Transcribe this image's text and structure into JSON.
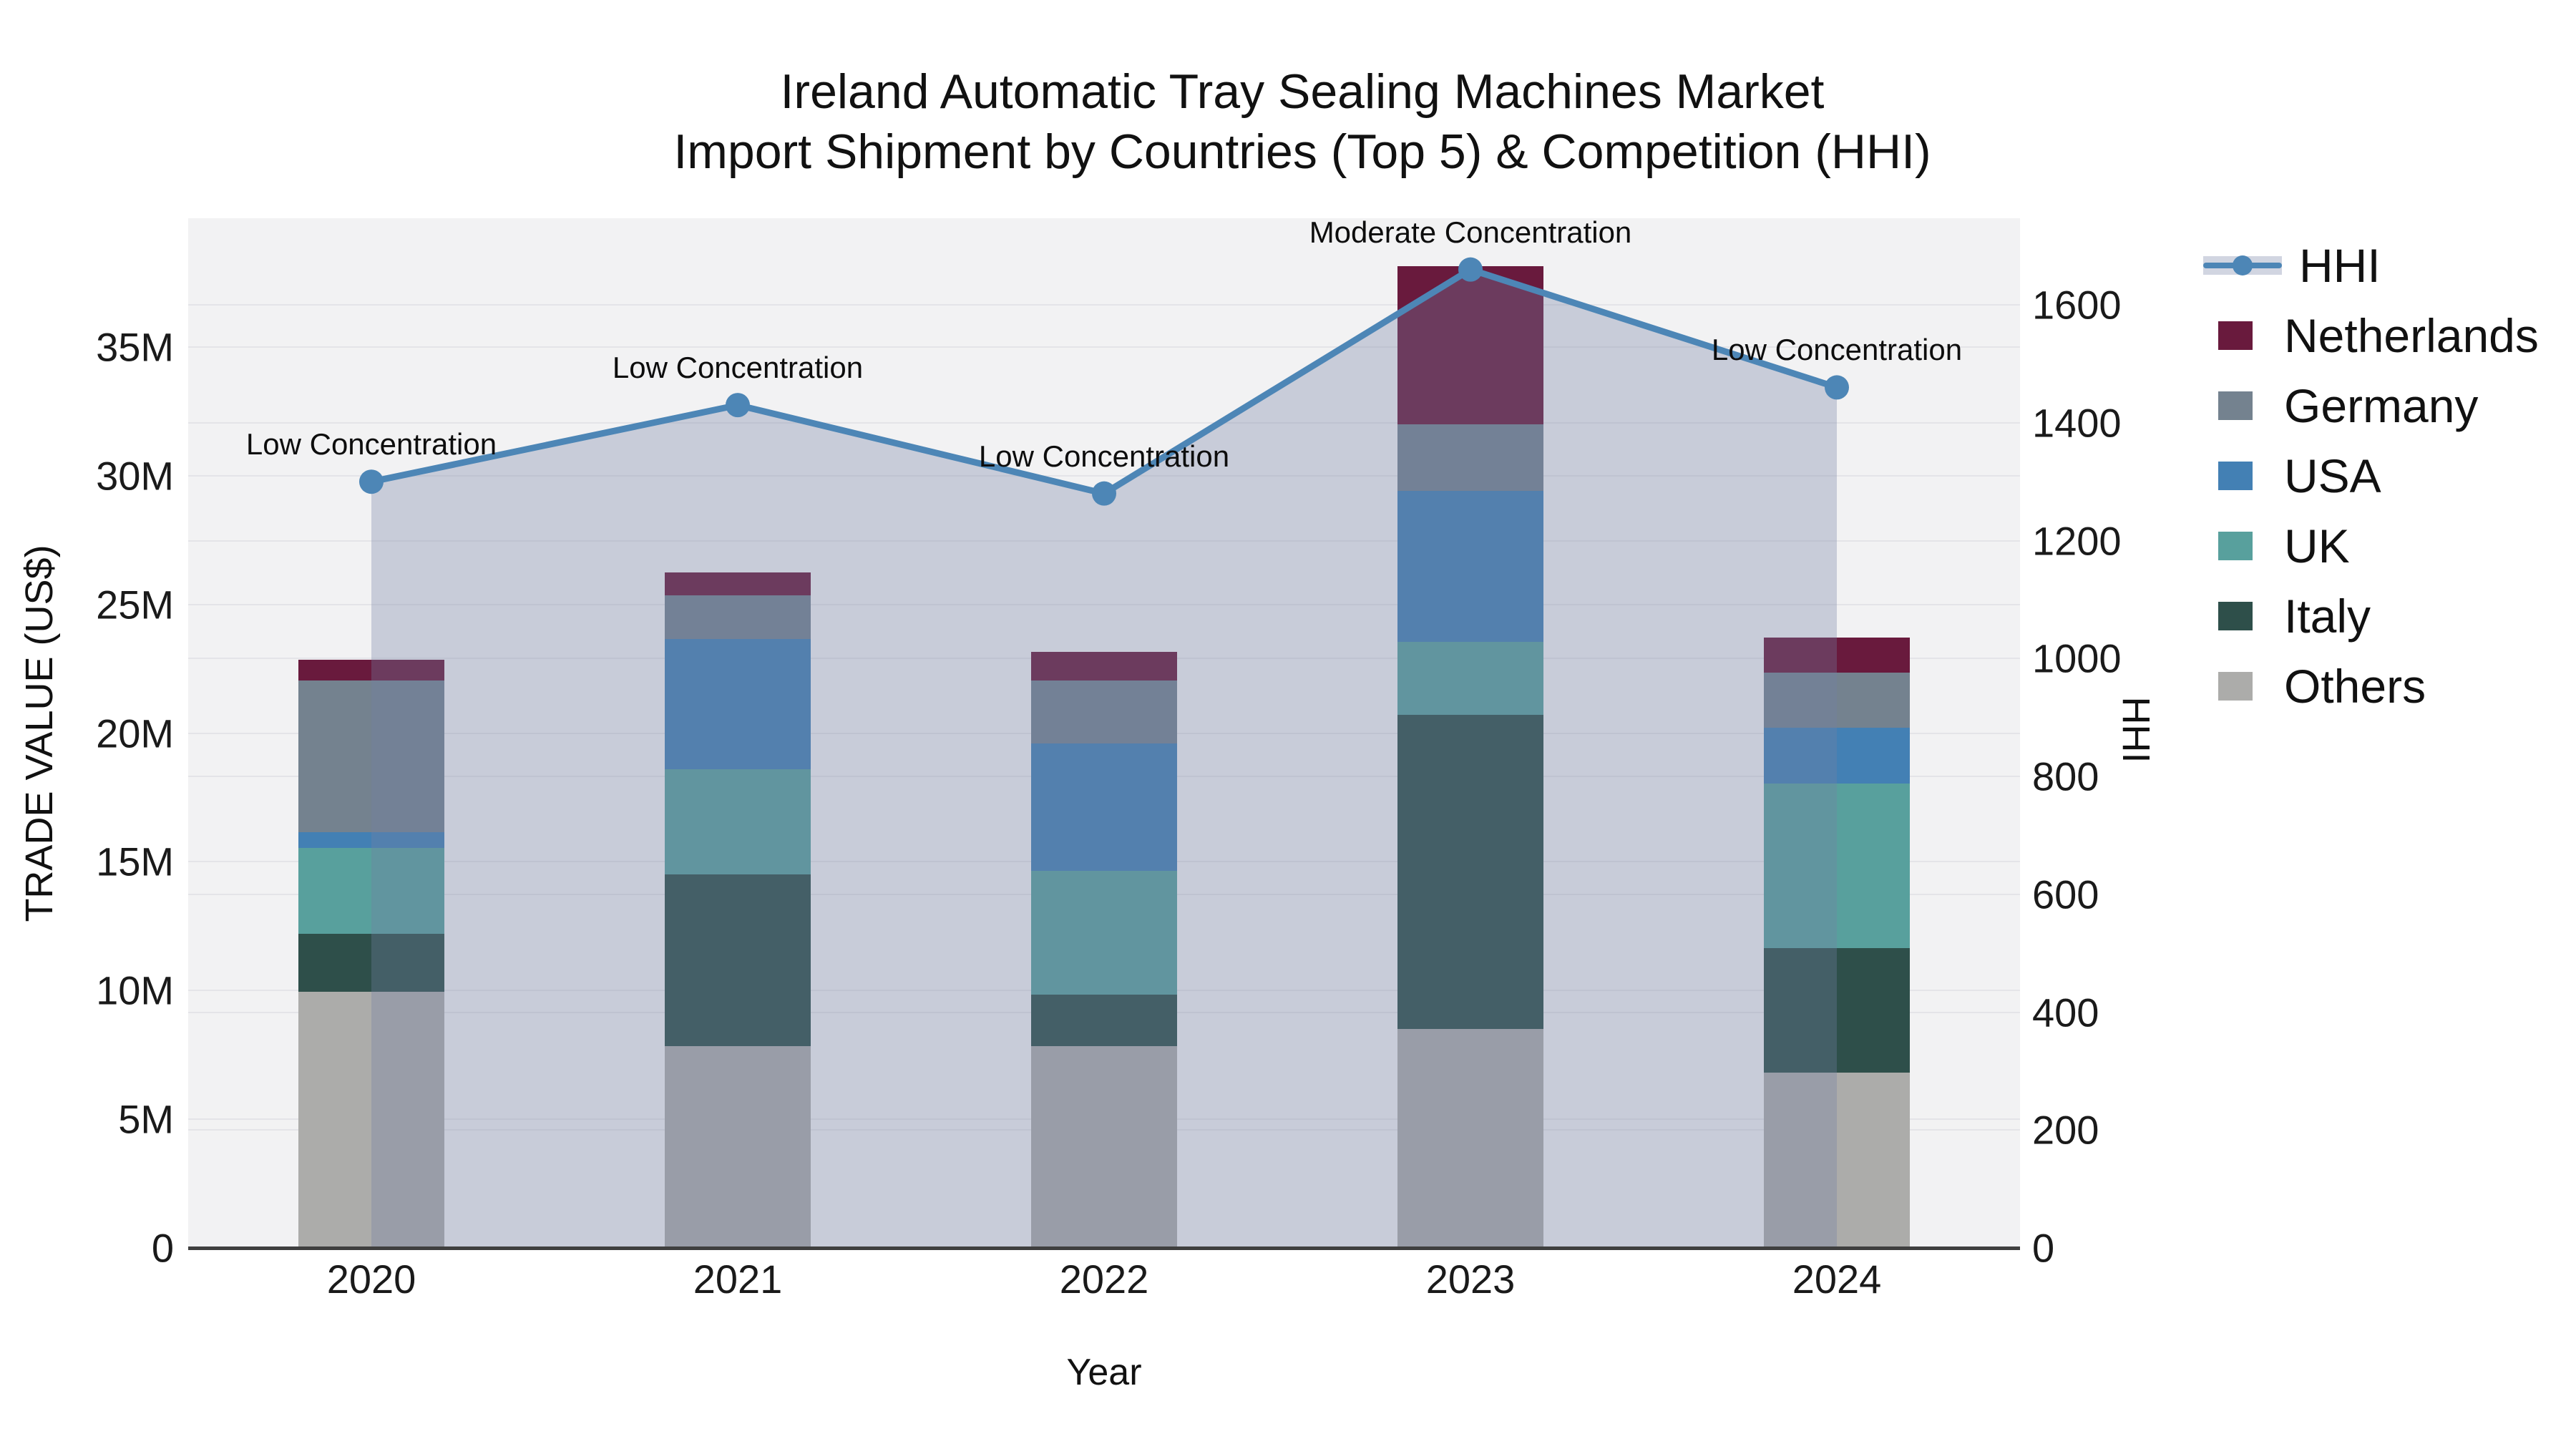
{
  "title": {
    "line1": "Ireland Automatic Tray Sealing Machines Market",
    "line2": "Import Shipment by Countries (Top 5) & Competition (HHI)"
  },
  "axes": {
    "left": {
      "title": "TRADE VALUE (US$)",
      "tick_labels": [
        "0",
        "5M",
        "10M",
        "15M",
        "20M",
        "25M",
        "30M",
        "35M"
      ],
      "tick_values": [
        0,
        5,
        10,
        15,
        20,
        25,
        30,
        35
      ]
    },
    "right": {
      "title": "HHI",
      "tick_labels": [
        "0",
        "200",
        "400",
        "600",
        "800",
        "1000",
        "1200",
        "1400",
        "1600"
      ],
      "tick_values": [
        0,
        200,
        400,
        600,
        800,
        1000,
        1200,
        1400,
        1600
      ]
    },
    "x": {
      "title": "Year",
      "categories": [
        "2020",
        "2021",
        "2022",
        "2023",
        "2024"
      ]
    }
  },
  "legend": {
    "items": [
      {
        "label": "HHI",
        "type": "line",
        "color": "#4d86b6"
      },
      {
        "label": "Netherlands",
        "type": "swatch",
        "color": "#691a3d"
      },
      {
        "label": "Germany",
        "type": "swatch",
        "color": "#74828f"
      },
      {
        "label": "USA",
        "type": "swatch",
        "color": "#4380b4"
      },
      {
        "label": "UK",
        "type": "swatch",
        "color": "#58a09d"
      },
      {
        "label": "Italy",
        "type": "swatch",
        "color": "#2e4f4a"
      },
      {
        "label": "Others",
        "type": "swatch",
        "color": "#acacaa"
      }
    ]
  },
  "colors": {
    "plot_background": "#f2f2f3",
    "gridline": "#e4e4e8",
    "axis_line": "#3f3f3f",
    "hhi_line": "#4d86b6",
    "hhi_fill": "rgba(115,128,165,0.33)"
  },
  "chart_data": {
    "type": "bar+line",
    "title": "Ireland Automatic Tray Sealing Machines Market — Import Shipment by Countries (Top 5) & Competition (HHI)",
    "categories": [
      "2020",
      "2021",
      "2022",
      "2023",
      "2024"
    ],
    "bar_unit": "US$ millions",
    "bar_stack_order_bottom_to_top": [
      "Others",
      "Italy",
      "UK",
      "USA",
      "Germany",
      "Netherlands"
    ],
    "series": [
      {
        "name": "Others",
        "color": "#acacaa",
        "values": [
          9.95,
          7.85,
          7.85,
          8.5,
          6.8
        ]
      },
      {
        "name": "Italy",
        "color": "#2e4f4a",
        "values": [
          2.25,
          6.65,
          2.0,
          12.2,
          4.85
        ]
      },
      {
        "name": "UK",
        "color": "#58a09d",
        "values": [
          3.35,
          4.1,
          4.8,
          2.85,
          6.4
        ]
      },
      {
        "name": "USA",
        "color": "#4380b4",
        "values": [
          0.6,
          5.05,
          4.95,
          5.85,
          2.15
        ]
      },
      {
        "name": "Germany",
        "color": "#74828f",
        "values": [
          5.9,
          1.7,
          2.45,
          2.6,
          2.15
        ]
      },
      {
        "name": "Netherlands",
        "color": "#691a3d",
        "values": [
          0.8,
          0.9,
          1.1,
          6.15,
          1.35
        ]
      }
    ],
    "bar_totals": [
      22.85,
      26.25,
      23.15,
      38.15,
      23.7
    ],
    "line_series": {
      "name": "HHI",
      "color": "#4d86b6",
      "fill_under": "rgba(115,128,165,0.33)",
      "values": [
        1300,
        1430,
        1280,
        1660,
        1460
      ],
      "annotations": [
        "Low Concentration",
        "Low Concentration",
        "Low Concentration",
        "Moderate Concentration",
        "Low Concentration"
      ]
    },
    "xlabel": "Year",
    "ylabel_left": "TRADE VALUE (US$)",
    "ylabel_right": "HHI",
    "ylim_left": [
      0,
      40
    ],
    "ylim_right": [
      0,
      1747
    ],
    "grid": true,
    "legend_position": "right"
  }
}
